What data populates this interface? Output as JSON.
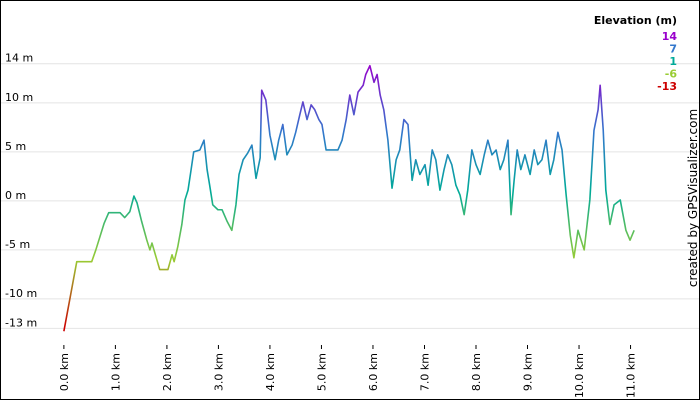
{
  "chart_data": {
    "type": "line",
    "watermark": "created by GPSVisualizer.com",
    "legend": {
      "title": "Elevation (m)",
      "items": [
        {
          "value": 14,
          "color": "#9900cc"
        },
        {
          "value": 7,
          "color": "#3377cc"
        },
        {
          "value": 1,
          "color": "#00aa99"
        },
        {
          "value": -6,
          "color": "#99cc33"
        },
        {
          "value": -13,
          "color": "#cc0000"
        }
      ]
    },
    "xlim": [
      -1.24,
      11.96
    ],
    "ylim": [
      -14.7,
      20.5
    ],
    "xticks": [
      {
        "value": 0,
        "label": "0.0 km"
      },
      {
        "value": 1,
        "label": "1.0 km"
      },
      {
        "value": 2,
        "label": "2.0 km"
      },
      {
        "value": 3,
        "label": "3.0 km"
      },
      {
        "value": 4,
        "label": "4.0 km"
      },
      {
        "value": 5,
        "label": "5.0 km"
      },
      {
        "value": 6,
        "label": "6.0 km"
      },
      {
        "value": 7,
        "label": "7.0 km"
      },
      {
        "value": 8,
        "label": "8.0 km"
      },
      {
        "value": 9,
        "label": "9.0 km"
      },
      {
        "value": 10,
        "label": "10.0 km"
      },
      {
        "value": 11,
        "label": "11.0 km"
      }
    ],
    "yticks": [
      {
        "value": 14,
        "label": "14 m"
      },
      {
        "value": 10,
        "label": "10 m"
      },
      {
        "value": 5,
        "label": "5 m"
      },
      {
        "value": 0,
        "label": "0 m"
      },
      {
        "value": -5,
        "label": "-5 m"
      },
      {
        "value": -10,
        "label": "-10 m"
      },
      {
        "value": -13,
        "label": "-13 m"
      }
    ],
    "grid": true,
    "x": [
      0,
      0.25,
      0.54,
      0.62,
      0.78,
      0.87,
      1.09,
      1.18,
      1.28,
      1.36,
      1.42,
      1.51,
      1.61,
      1.67,
      1.71,
      1.81,
      1.86,
      2.02,
      2.1,
      2.14,
      2.21,
      2.29,
      2.35,
      2.41,
      2.47,
      2.52,
      2.64,
      2.72,
      2.78,
      2.83,
      2.89,
      2.99,
      3.07,
      3.17,
      3.26,
      3.34,
      3.4,
      3.48,
      3.57,
      3.65,
      3.73,
      3.81,
      3.84,
      3.92,
      4.0,
      4.1,
      4.17,
      4.25,
      4.33,
      4.43,
      4.5,
      4.58,
      4.64,
      4.72,
      4.8,
      4.87,
      4.95,
      5.01,
      5.09,
      5.32,
      5.4,
      5.48,
      5.55,
      5.63,
      5.71,
      5.81,
      5.86,
      5.94,
      6.02,
      6.08,
      6.14,
      6.21,
      6.29,
      6.37,
      6.45,
      6.52,
      6.6,
      6.68,
      6.76,
      6.83,
      6.91,
      7.01,
      7.07,
      7.15,
      7.22,
      7.3,
      7.38,
      7.45,
      7.53,
      7.61,
      7.69,
      7.77,
      7.84,
      7.92,
      8.0,
      8.08,
      8.16,
      8.23,
      8.31,
      8.39,
      8.47,
      8.54,
      8.62,
      8.68,
      8.74,
      8.8,
      8.87,
      8.95,
      9.05,
      9.13,
      9.2,
      9.28,
      9.36,
      9.44,
      9.51,
      9.59,
      9.67,
      9.75,
      9.83,
      9.9,
      9.98,
      10.1,
      10.21,
      10.29,
      10.37,
      10.41,
      10.47,
      10.52,
      10.6,
      10.68,
      10.8,
      10.91,
      10.99,
      11.07
    ],
    "values": [
      -13.3,
      -6.2,
      -6.2,
      -5,
      -2.3,
      -1.2,
      -1.2,
      -1.7,
      -1.1,
      0.5,
      -0.2,
      -2.1,
      -4,
      -5,
      -4.3,
      -6.1,
      -7,
      -7,
      -5.5,
      -6.2,
      -4.7,
      -2.4,
      0.1,
      1.1,
      3.2,
      5,
      5.2,
      6.2,
      3.2,
      1.6,
      -0.4,
      -0.9,
      -0.9,
      -2.1,
      -3,
      -0.4,
      2.7,
      4.2,
      4.9,
      5.7,
      2.3,
      4.4,
      11.3,
      10.3,
      6.7,
      4.2,
      6.2,
      7.8,
      4.7,
      5.7,
      7,
      8.8,
      10.1,
      8.3,
      9.8,
      9.3,
      8.3,
      7.8,
      5.2,
      5.2,
      6.2,
      8.3,
      10.8,
      8.8,
      11.1,
      11.8,
      12.9,
      13.8,
      12.1,
      12.9,
      10.8,
      9.3,
      6.2,
      1.3,
      4.2,
      5.2,
      8.3,
      7.8,
      2.1,
      4.2,
      2.7,
      3.7,
      1.6,
      5.2,
      4.2,
      1.1,
      3.2,
      4.7,
      3.7,
      1.6,
      0.6,
      -1.4,
      1.1,
      5.2,
      3.7,
      2.7,
      4.7,
      6.2,
      4.7,
      5.2,
      3.2,
      4.2,
      6.2,
      -1.4,
      2.1,
      5.2,
      3.2,
      4.7,
      2.7,
      5.2,
      3.7,
      4.2,
      6.2,
      2.7,
      4.2,
      7,
      5.2,
      0.6,
      -3.5,
      -5.8,
      -3,
      -5,
      0.1,
      7.2,
      9.3,
      11.8,
      7.2,
      1.1,
      -2.4,
      -0.4,
      0.1,
      -3,
      -4,
      -3
    ]
  }
}
